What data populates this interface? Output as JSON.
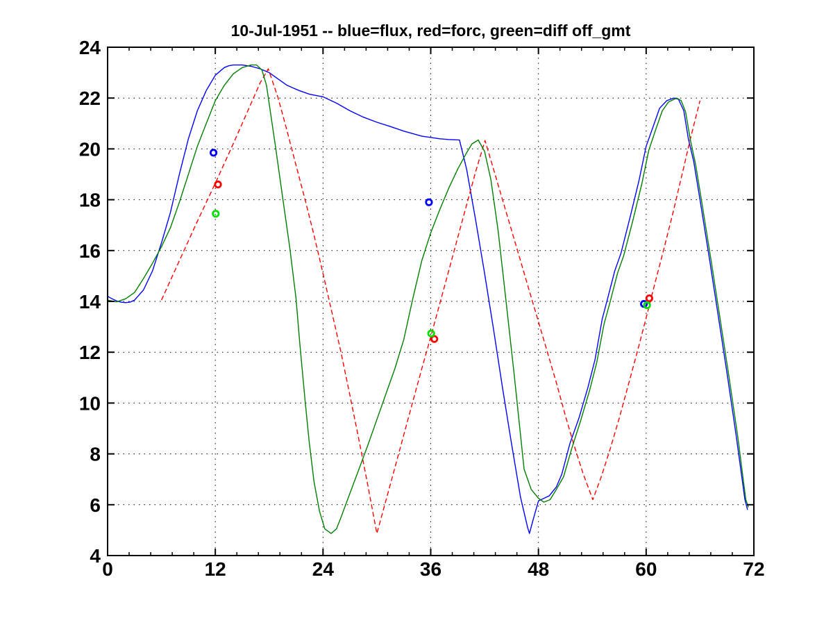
{
  "chart_data": {
    "type": "line",
    "title": "10-Jul-1951 -- blue=flux, red=forc, green=diff off_gmt",
    "xlabel": "",
    "ylabel": "",
    "xlim": [
      0,
      72
    ],
    "ylim": [
      4,
      24
    ],
    "x_ticks": [
      0,
      12,
      24,
      36,
      48,
      60,
      72
    ],
    "y_ticks": [
      4,
      6,
      8,
      10,
      12,
      14,
      16,
      18,
      20,
      22,
      24
    ],
    "x_minor_step": 2.4,
    "grid": "dotted",
    "background": "#ffffff",
    "axis_color": "#000000",
    "legend_position": "encoded-in-title",
    "series": [
      {
        "name": "flux",
        "color": "#0000ff",
        "style": "solid",
        "x": [
          0,
          0.5,
          1,
          1.5,
          2,
          2.5,
          3,
          4,
          5,
          6,
          7,
          8,
          9,
          10,
          11,
          12,
          13,
          13.5,
          14,
          15,
          16,
          17,
          18,
          19,
          20,
          21.3,
          22.5,
          24,
          25.5,
          27,
          28.5,
          30,
          31.5,
          33,
          34,
          35,
          36,
          37,
          38,
          39.2,
          40,
          41,
          42,
          43,
          44,
          45,
          46,
          46.8,
          47,
          47.4,
          48,
          48.6,
          49.2,
          50,
          50.6,
          51.5,
          52.5,
          53.5,
          54.3,
          55.1,
          55.7,
          56.5,
          57.2,
          58.2,
          59.2,
          60,
          60.8,
          61.5,
          62.3,
          63.1,
          63.6,
          64.2,
          64.7,
          65.3,
          66,
          67,
          68,
          69,
          70,
          71,
          71.3
        ],
        "y": [
          14.2,
          14.1,
          14.02,
          13.97,
          13.95,
          13.97,
          14.05,
          14.45,
          15.2,
          16.3,
          17.5,
          19.0,
          20.4,
          21.5,
          22.3,
          22.9,
          23.2,
          23.27,
          23.3,
          23.3,
          23.25,
          23.15,
          23.0,
          22.75,
          22.5,
          22.3,
          22.15,
          22.05,
          21.8,
          21.5,
          21.25,
          21.05,
          20.88,
          20.7,
          20.6,
          20.5,
          20.45,
          20.4,
          20.37,
          20.35,
          19.2,
          17.2,
          15.1,
          12.9,
          10.6,
          8.4,
          6.3,
          5.1,
          4.87,
          5.4,
          6.15,
          6.25,
          6.35,
          6.7,
          7.2,
          8.4,
          9.4,
          10.6,
          11.7,
          13.3,
          14.1,
          15.2,
          15.9,
          17.3,
          18.75,
          20.1,
          20.9,
          21.6,
          21.9,
          22.0,
          21.95,
          21.5,
          20.4,
          19.5,
          18.0,
          15.8,
          13.5,
          11.2,
          8.8,
          6.2,
          5.8
        ]
      },
      {
        "name": "forc",
        "color": "#ff0000",
        "style": "dashed",
        "x": [
          6,
          8,
          10,
          12,
          14,
          16,
          17,
          17.9,
          19,
          20,
          21,
          22,
          23,
          24,
          25,
          26,
          27,
          28,
          29,
          30,
          31,
          32,
          33,
          34,
          35,
          36,
          37,
          38,
          39,
          40,
          41,
          42.05,
          43,
          44,
          45,
          46,
          47,
          48,
          49,
          50,
          51,
          52,
          53,
          54.06,
          55,
          56,
          57,
          58,
          59,
          60,
          61,
          62,
          63,
          64,
          65,
          66
        ],
        "y": [
          14.05,
          15.6,
          17.15,
          18.65,
          20.2,
          21.8,
          22.6,
          23.15,
          22.0,
          20.7,
          19.35,
          18.0,
          16.6,
          15.1,
          13.55,
          12.0,
          10.3,
          8.55,
          6.75,
          4.87,
          6.15,
          7.45,
          8.75,
          10.05,
          11.35,
          12.6,
          13.9,
          15.2,
          16.5,
          17.8,
          19.1,
          20.33,
          19.2,
          18.0,
          16.8,
          15.6,
          14.4,
          13.2,
          12.0,
          10.8,
          9.5,
          8.3,
          7.2,
          6.2,
          7.1,
          8.2,
          9.4,
          10.7,
          12.0,
          13.35,
          14.75,
          16.1,
          17.5,
          19.0,
          20.5,
          21.9
        ]
      },
      {
        "name": "diff",
        "color": "#007f00",
        "style": "solid",
        "x": [
          0,
          1,
          2,
          3,
          4,
          5,
          6,
          7,
          8,
          9,
          10,
          11,
          12,
          13,
          14,
          15,
          16,
          16.6,
          17.2,
          17.7,
          18.7,
          19.5,
          20.3,
          21,
          21.4,
          22,
          22.45,
          23,
          23.6,
          24.2,
          24.9,
          25.5,
          26,
          27,
          28,
          29,
          30,
          31,
          32,
          33,
          34,
          35,
          36,
          37,
          38,
          39,
          40,
          40.6,
          41.3,
          42,
          42.7,
          43.5,
          44.3,
          45.3,
          46.4,
          47.2,
          48,
          48.6,
          49.3,
          50,
          50.8,
          51.7,
          52.7,
          53.7,
          54.5,
          55.3,
          56,
          56.8,
          57.5,
          58.5,
          59.5,
          60.3,
          61.1,
          61.8,
          62.5,
          63.4,
          63.9,
          64.4,
          64.9,
          65.5,
          66.2,
          67.2,
          68.2,
          69.2,
          70.2,
          71.1,
          71.4
        ],
        "y": [
          14.05,
          13.98,
          14.1,
          14.35,
          14.9,
          15.5,
          16.15,
          16.9,
          17.9,
          19.0,
          20.1,
          21.0,
          21.9,
          22.5,
          22.95,
          23.2,
          23.3,
          23.3,
          23.1,
          22.5,
          20.1,
          18.1,
          16.1,
          14.1,
          12.4,
          10.1,
          8.5,
          6.9,
          5.75,
          5.05,
          4.87,
          5.05,
          5.5,
          6.45,
          7.4,
          8.35,
          9.35,
          10.35,
          11.35,
          12.5,
          14.1,
          15.6,
          16.7,
          17.6,
          18.45,
          19.2,
          19.85,
          20.2,
          20.35,
          19.9,
          18.8,
          16.8,
          14.3,
          11.1,
          7.4,
          6.6,
          6.25,
          6.1,
          6.2,
          6.6,
          7.1,
          8.2,
          9.3,
          10.5,
          11.6,
          13.1,
          14.0,
          15.1,
          15.8,
          17.15,
          18.6,
          19.95,
          20.8,
          21.5,
          21.85,
          22.0,
          21.9,
          21.45,
          20.4,
          19.4,
          17.9,
          15.7,
          13.4,
          11.1,
          8.7,
          6.2,
          5.9
        ]
      }
    ],
    "markers": [
      {
        "name": "flux-observations",
        "color": "#0000ff",
        "points": [
          [
            11.8,
            19.85
          ],
          [
            35.8,
            17.9
          ],
          [
            59.75,
            13.9
          ]
        ]
      },
      {
        "name": "forc-observations",
        "color": "#ff0000",
        "points": [
          [
            12.3,
            18.6
          ],
          [
            36.4,
            12.52
          ],
          [
            60.35,
            14.12
          ]
        ]
      },
      {
        "name": "diff-observations",
        "color": "#00e000",
        "points": [
          [
            12.05,
            17.45
          ],
          [
            36.05,
            12.74
          ],
          [
            60.1,
            13.85
          ]
        ]
      }
    ]
  }
}
